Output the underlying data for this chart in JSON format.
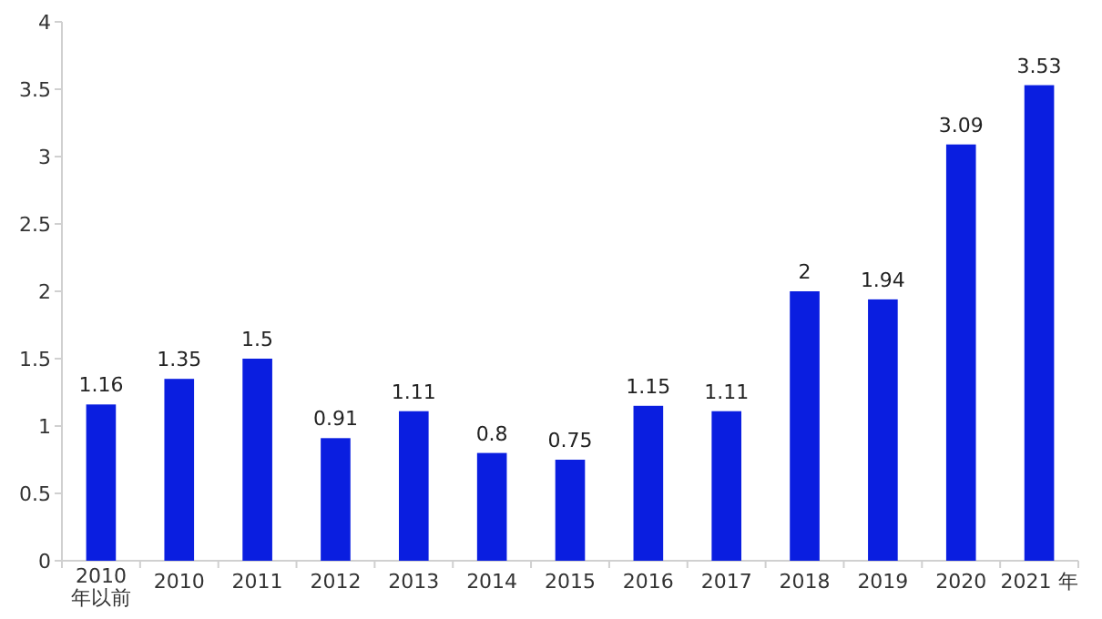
{
  "chart_data": {
    "type": "bar",
    "categories": [
      "2010 年以前",
      "2010",
      "2011",
      "2012",
      "2013",
      "2014",
      "2015",
      "2016",
      "2017",
      "2018",
      "2019",
      "2020",
      "2021 年"
    ],
    "values": [
      1.16,
      1.35,
      1.5,
      0.91,
      1.11,
      0.8,
      0.75,
      1.15,
      1.11,
      2,
      1.94,
      3.09,
      3.53
    ],
    "color": "#0a1ee0",
    "ylim": [
      0,
      4
    ],
    "yticks": [
      0,
      0.5,
      1,
      1.5,
      2,
      2.5,
      3,
      3.5,
      4
    ],
    "data_labels": true
  }
}
